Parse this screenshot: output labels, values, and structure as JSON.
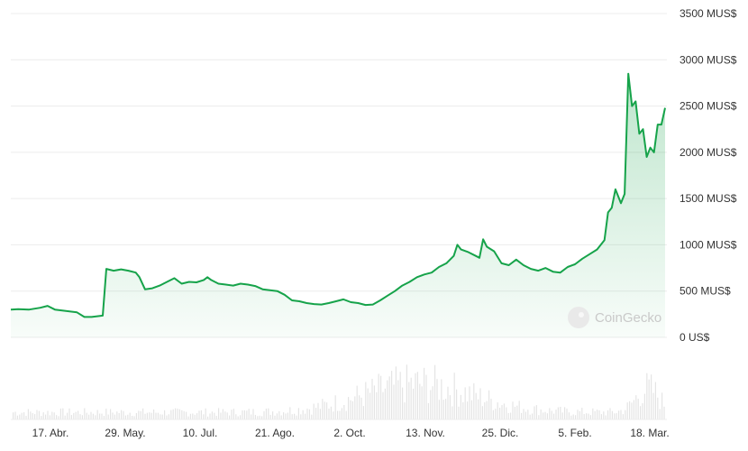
{
  "chart_data": {
    "type": "area",
    "title": "",
    "xlabel": "",
    "ylabel": "",
    "y_ticks": [
      {
        "value": 0,
        "label": "0 US$"
      },
      {
        "value": 500,
        "label": "500 MUS$"
      },
      {
        "value": 1000,
        "label": "1000 MUS$"
      },
      {
        "value": 1500,
        "label": "1500 MUS$"
      },
      {
        "value": 2000,
        "label": "2000 MUS$"
      },
      {
        "value": 2500,
        "label": "2500 MUS$"
      },
      {
        "value": 3000,
        "label": "3000 MUS$"
      },
      {
        "value": 3500,
        "label": "3500 MUS$"
      }
    ],
    "ylim": [
      0,
      3500
    ],
    "y_axis_position": "right",
    "x_ticks": [
      "17. Abr.",
      "29. May.",
      "10. Jul.",
      "21. Ago.",
      "2. Oct.",
      "13. Nov.",
      "25. Dic.",
      "5. Feb.",
      "18. Mar."
    ],
    "xlim": [
      "2023-04-04",
      "2024-03-26"
    ],
    "grid": true,
    "colors": {
      "line": "#16a34a",
      "fill": "#16a34a",
      "volume": "#e4e4e4",
      "grid": "#ececec"
    },
    "series": [
      {
        "points": [
          [
            "2023-04-04",
            300
          ],
          [
            "2023-04-08",
            305
          ],
          [
            "2023-04-14",
            300
          ],
          [
            "2023-04-20",
            320
          ],
          [
            "2023-04-24",
            340
          ],
          [
            "2023-04-28",
            300
          ],
          [
            "2023-05-04",
            285
          ],
          [
            "2023-05-10",
            270
          ],
          [
            "2023-05-14",
            220
          ],
          [
            "2023-05-18",
            220
          ],
          [
            "2023-05-24",
            235
          ],
          [
            "2023-05-26",
            740
          ],
          [
            "2023-05-30",
            720
          ],
          [
            "2023-06-03",
            735
          ],
          [
            "2023-06-07",
            720
          ],
          [
            "2023-06-11",
            700
          ],
          [
            "2023-06-13",
            650
          ],
          [
            "2023-06-16",
            520
          ],
          [
            "2023-06-20",
            530
          ],
          [
            "2023-06-24",
            560
          ],
          [
            "2023-06-28",
            600
          ],
          [
            "2023-07-02",
            640
          ],
          [
            "2023-07-06",
            580
          ],
          [
            "2023-07-10",
            600
          ],
          [
            "2023-07-14",
            595
          ],
          [
            "2023-07-18",
            620
          ],
          [
            "2023-07-20",
            650
          ],
          [
            "2023-07-22",
            620
          ],
          [
            "2023-07-26",
            580
          ],
          [
            "2023-07-30",
            570
          ],
          [
            "2023-08-03",
            560
          ],
          [
            "2023-08-07",
            580
          ],
          [
            "2023-08-11",
            570
          ],
          [
            "2023-08-15",
            555
          ],
          [
            "2023-08-19",
            520
          ],
          [
            "2023-08-23",
            510
          ],
          [
            "2023-08-27",
            500
          ],
          [
            "2023-08-31",
            460
          ],
          [
            "2023-09-04",
            400
          ],
          [
            "2023-09-08",
            390
          ],
          [
            "2023-09-12",
            370
          ],
          [
            "2023-09-16",
            360
          ],
          [
            "2023-09-20",
            355
          ],
          [
            "2023-09-24",
            370
          ],
          [
            "2023-09-28",
            390
          ],
          [
            "2023-10-02",
            410
          ],
          [
            "2023-10-06",
            380
          ],
          [
            "2023-10-10",
            370
          ],
          [
            "2023-10-14",
            350
          ],
          [
            "2023-10-18",
            355
          ],
          [
            "2023-10-22",
            400
          ],
          [
            "2023-10-26",
            450
          ],
          [
            "2023-10-30",
            500
          ],
          [
            "2023-11-03",
            560
          ],
          [
            "2023-11-07",
            600
          ],
          [
            "2023-11-11",
            650
          ],
          [
            "2023-11-15",
            680
          ],
          [
            "2023-11-19",
            700
          ],
          [
            "2023-11-23",
            760
          ],
          [
            "2023-11-27",
            800
          ],
          [
            "2023-12-01",
            880
          ],
          [
            "2023-12-03",
            1000
          ],
          [
            "2023-12-05",
            950
          ],
          [
            "2023-12-09",
            920
          ],
          [
            "2023-12-13",
            880
          ],
          [
            "2023-12-15",
            860
          ],
          [
            "2023-12-17",
            1060
          ],
          [
            "2023-12-19",
            980
          ],
          [
            "2023-12-23",
            930
          ],
          [
            "2023-12-27",
            800
          ],
          [
            "2023-12-31",
            780
          ],
          [
            "2024-01-04",
            840
          ],
          [
            "2024-01-08",
            780
          ],
          [
            "2024-01-12",
            740
          ],
          [
            "2024-01-16",
            720
          ],
          [
            "2024-01-20",
            750
          ],
          [
            "2024-01-24",
            710
          ],
          [
            "2024-01-28",
            700
          ],
          [
            "2024-02-01",
            760
          ],
          [
            "2024-02-05",
            790
          ],
          [
            "2024-02-09",
            850
          ],
          [
            "2024-02-13",
            900
          ],
          [
            "2024-02-17",
            950
          ],
          [
            "2024-02-21",
            1050
          ],
          [
            "2024-02-23",
            1350
          ],
          [
            "2024-02-25",
            1400
          ],
          [
            "2024-02-27",
            1600
          ],
          [
            "2024-03-01",
            1450
          ],
          [
            "2024-03-03",
            1550
          ],
          [
            "2024-03-05",
            2850
          ],
          [
            "2024-03-07",
            2500
          ],
          [
            "2024-03-09",
            2550
          ],
          [
            "2024-03-11",
            2200
          ],
          [
            "2024-03-13",
            2250
          ],
          [
            "2024-03-15",
            1950
          ],
          [
            "2024-03-17",
            2050
          ],
          [
            "2024-03-19",
            2000
          ],
          [
            "2024-03-21",
            2300
          ],
          [
            "2024-03-23",
            2300
          ],
          [
            "2024-03-25",
            2480
          ]
        ]
      }
    ],
    "volume_bars": "unlabeled, shown below the price area",
    "watermark": "CoinGecko"
  }
}
